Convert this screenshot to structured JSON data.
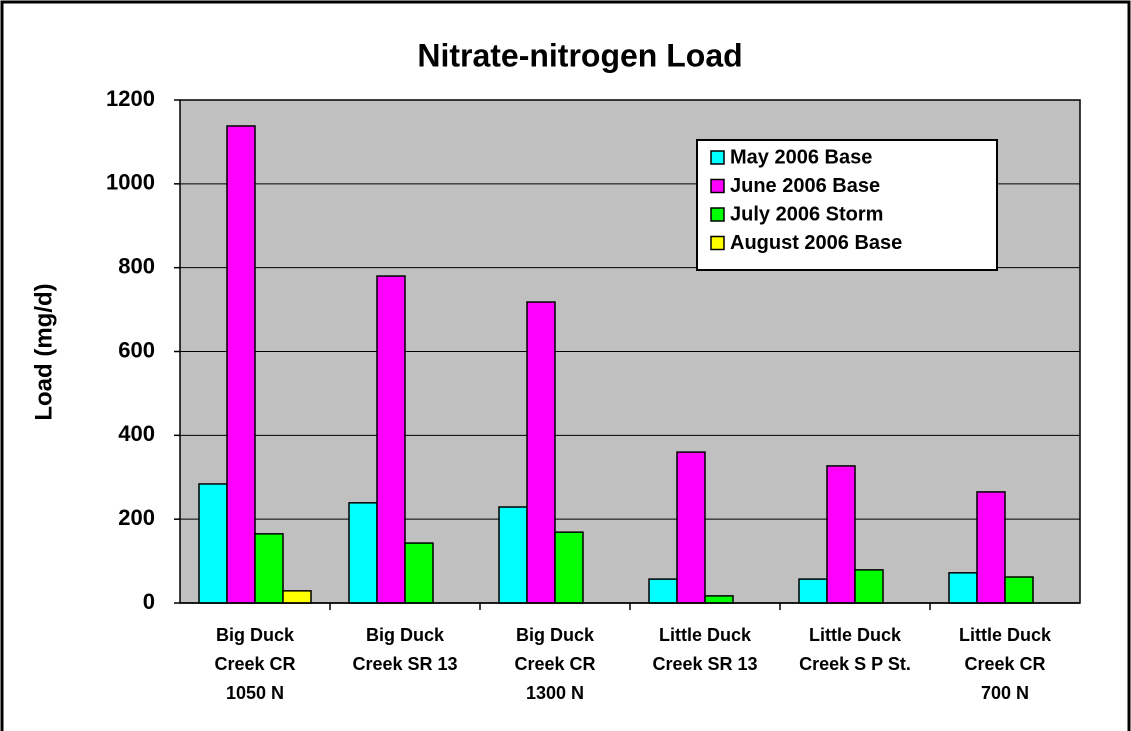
{
  "chart_data": {
    "type": "bar",
    "title": "Nitrate-nitrogen Load",
    "y_label": "Load (mg/d)",
    "categories": [
      [
        "Big Duck",
        "Creek CR",
        "1050 N"
      ],
      [
        "Big Duck",
        "Creek SR 13"
      ],
      [
        "Big Duck",
        "Creek CR",
        "1300 N"
      ],
      [
        "Little Duck",
        "Creek SR 13"
      ],
      [
        "Little Duck",
        "Creek S P St."
      ],
      [
        "Little Duck",
        "Creek CR",
        "700 N"
      ]
    ],
    "series": [
      {
        "name": "May 2006 Base",
        "color": "#00ffff",
        "values": [
          284,
          239,
          229,
          57,
          57,
          72
        ]
      },
      {
        "name": "June 2006 Base",
        "color": "#ff00ff",
        "values": [
          1138,
          780,
          718,
          360,
          327,
          265
        ]
      },
      {
        "name": "July 2006 Storm",
        "color": "#00ff00",
        "values": [
          165,
          143,
          169,
          17,
          79,
          62
        ]
      },
      {
        "name": "August 2006 Base",
        "color": "#ffff00",
        "values": [
          29,
          0,
          0,
          0,
          0,
          0
        ]
      }
    ],
    "ylim": [
      0,
      1200
    ],
    "yticks": [
      0,
      200,
      400,
      600,
      800,
      1000,
      1200
    ],
    "grid": true,
    "legend": "top-right"
  }
}
